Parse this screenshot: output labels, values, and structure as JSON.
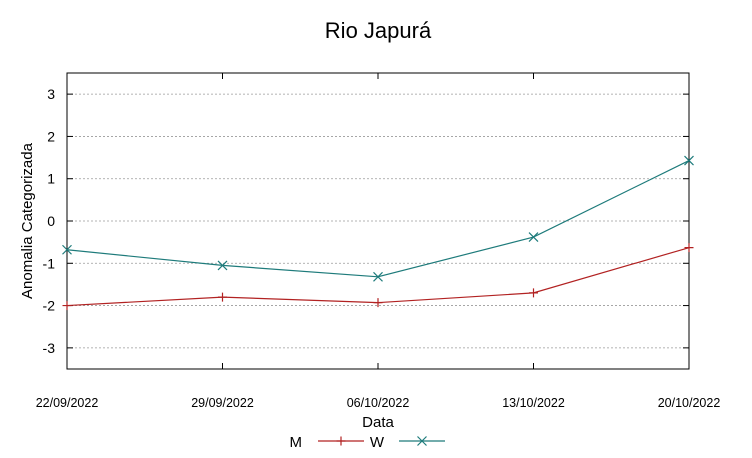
{
  "chart_data": {
    "type": "line",
    "title": "Rio Japurá",
    "xlabel": "Data",
    "ylabel": "Anomalia Categorizada",
    "categories": [
      "22/09/2022",
      "29/09/2022",
      "06/10/2022",
      "13/10/2022",
      "20/10/2022"
    ],
    "yticks": [
      "3",
      "2",
      "1",
      "0",
      "-1",
      "-2",
      "-3"
    ],
    "ylim": [
      -3.5,
      3.5
    ],
    "grid": true,
    "legend_position": "bottom-center",
    "series": [
      {
        "name": "M",
        "color": "#b22222",
        "marker": "plus",
        "values": [
          -2.0,
          -1.8,
          -1.93,
          -1.7,
          -0.63
        ]
      },
      {
        "name": "W",
        "color": "#1e7b7b",
        "marker": "x",
        "values": [
          -0.68,
          -1.05,
          -1.32,
          -0.38,
          1.43
        ]
      }
    ]
  }
}
